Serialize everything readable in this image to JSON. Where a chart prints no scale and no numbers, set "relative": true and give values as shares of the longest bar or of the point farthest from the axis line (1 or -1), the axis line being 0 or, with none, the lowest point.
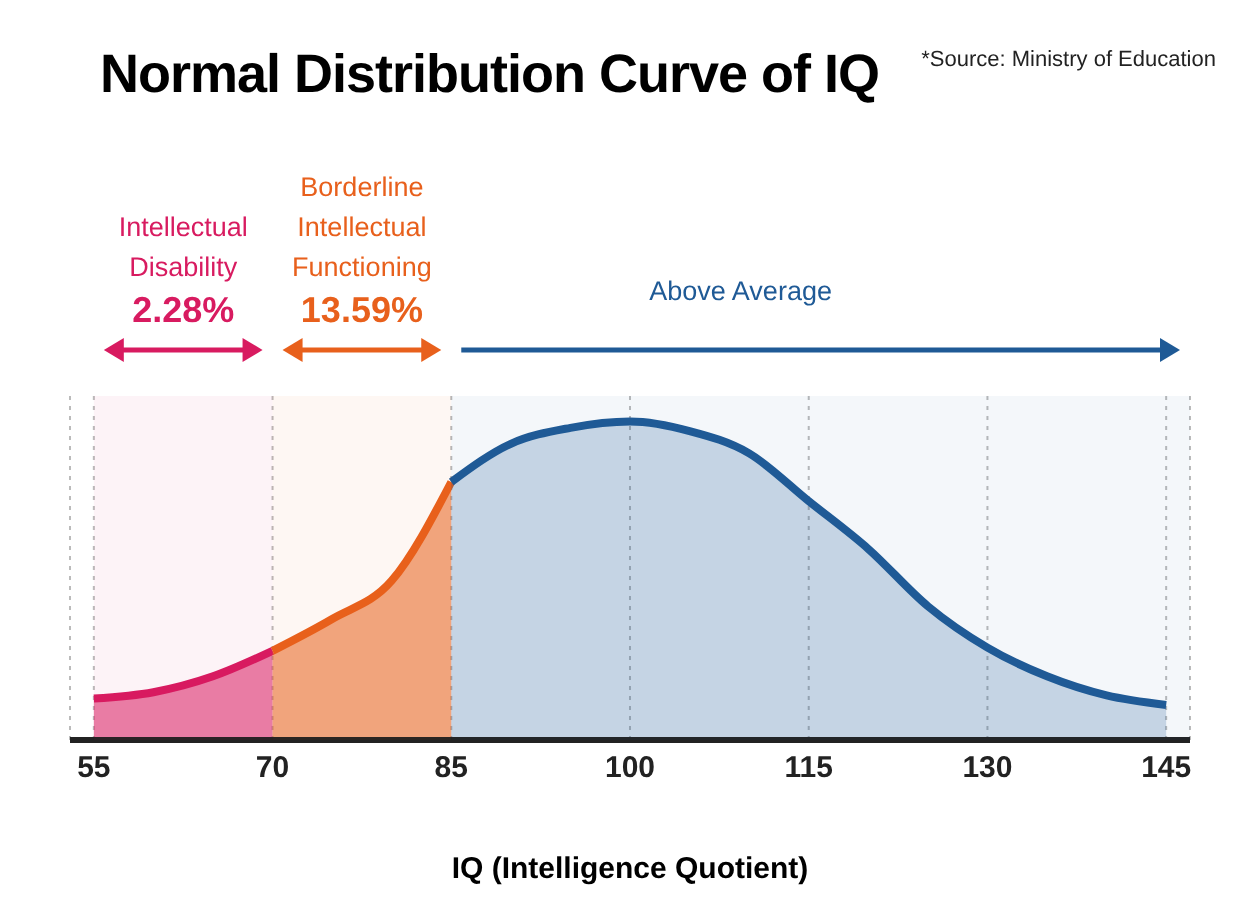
{
  "chart_data": {
    "type": "area",
    "title": "Normal Distribution Curve of IQ",
    "xlabel": "IQ (Intelligence Quotient)",
    "relative": true,
    "xlim": [
      53,
      147
    ],
    "xticks": [
      55,
      70,
      85,
      100,
      115,
      130,
      145
    ],
    "grid": "x",
    "series": [
      {
        "color": "#d81b60",
        "x": [
          55,
          60,
          65,
          70
        ],
        "values": [
          0.13,
          0.15,
          0.2,
          0.28
        ]
      },
      {
        "color": "#e8601c",
        "x": [
          70,
          75,
          80,
          85
        ],
        "values": [
          0.28,
          0.38,
          0.5,
          0.81
        ]
      },
      {
        "color": "#1f5a96",
        "x": [
          85,
          90,
          95,
          100,
          105,
          110,
          115,
          120,
          125,
          130,
          135,
          140,
          145
        ],
        "values": [
          0.81,
          0.93,
          0.98,
          1,
          0.97,
          0.9,
          0.75,
          0.6,
          0.42,
          0.29,
          0.2,
          0.14,
          0.11
        ]
      }
    ],
    "bands": [
      {
        "axis": "x",
        "from": 55,
        "to": 70,
        "label": "Intellectual Disability",
        "color": "#d81b60"
      },
      {
        "axis": "x",
        "from": 70,
        "to": 85,
        "label": "Borderline Intellectual Functioning",
        "color": "#e8601c"
      },
      {
        "axis": "x",
        "from": 85,
        "to": 147,
        "label": "Above Average",
        "color": "#1f5a96"
      }
    ],
    "annotations": [
      "*Source: Ministry of Education",
      "2.28%",
      "13.59%"
    ]
  }
}
